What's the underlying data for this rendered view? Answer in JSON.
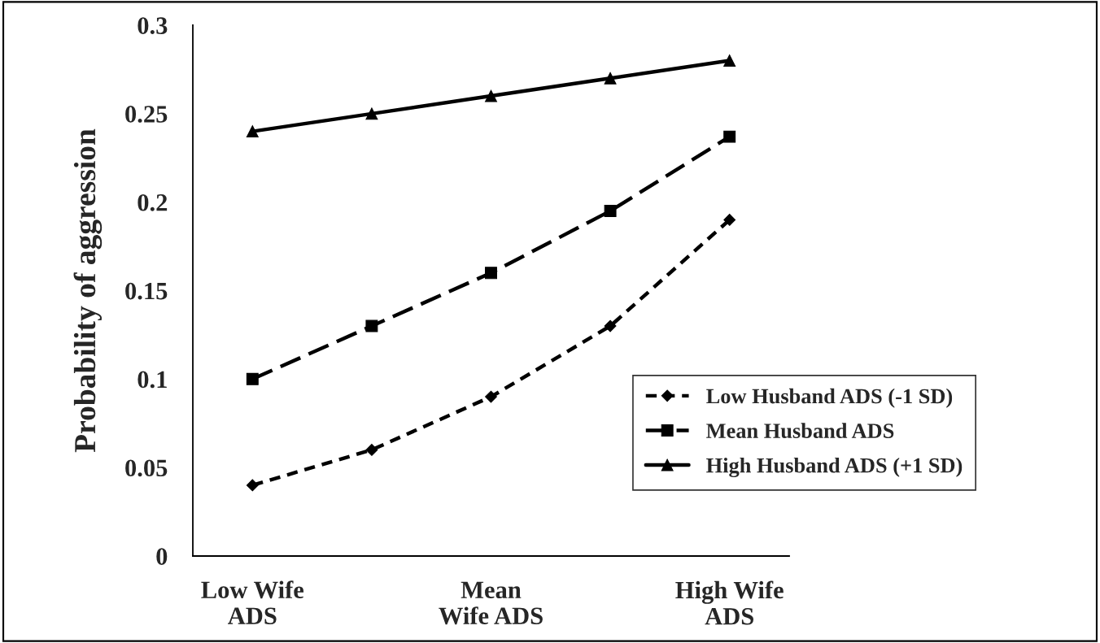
{
  "chart_data": {
    "type": "line",
    "ylabel": "Probability of aggression",
    "categories": [
      "Low Wife\nADS",
      null,
      "Mean\nWife ADS",
      null,
      "High Wife\nADS"
    ],
    "series": [
      {
        "name": "Low Husband ADS (-1 SD)",
        "color": "#000000",
        "marker": "diamond",
        "line_style": "dashed",
        "values": [
          0.04,
          0.06,
          0.09,
          0.13,
          0.19
        ]
      },
      {
        "name": "Mean Husband ADS",
        "color": "#000000",
        "marker": "square",
        "line_style": "dashed",
        "values": [
          0.1,
          0.13,
          0.16,
          0.195,
          0.237
        ]
      },
      {
        "name": "High Husband ADS (+1 SD)",
        "color": "#000000",
        "marker": "triangle",
        "line_style": "solid",
        "values": [
          0.24,
          0.25,
          0.26,
          0.27,
          0.28
        ]
      }
    ],
    "ylim": [
      0,
      0.3
    ],
    "yticks": [
      0,
      0.05,
      0.1,
      0.15,
      0.2,
      0.25,
      0.3
    ],
    "grid": false,
    "legend": "right"
  }
}
